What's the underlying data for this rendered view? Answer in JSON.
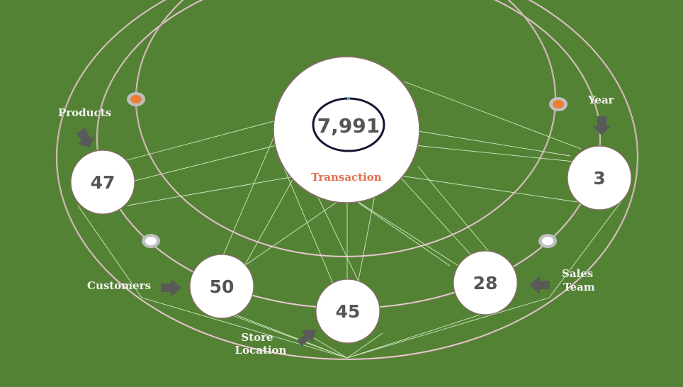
{
  "center": {
    "value": "7,991",
    "label": "Transaction"
  },
  "nodes": {
    "products": {
      "value": "47",
      "label": "Products"
    },
    "year": {
      "value": "3",
      "label": "Year"
    },
    "customers": {
      "value": "50",
      "label": "Customers"
    },
    "store_location": {
      "value": "45",
      "label_line1": "Store",
      "label_line2": "Location"
    },
    "sales_team": {
      "value": "28",
      "label_line1": "Sales",
      "label_line2": "Team"
    }
  },
  "colors": {
    "background": "#548235",
    "node_fill": "#FFFFFF",
    "node_text": "#555555",
    "center_label": "#E0704A",
    "arrow": "#5A5A5A",
    "connector": "#D9E8C8",
    "orbit": "#E8D0D0",
    "center_ring": "#1A1A2E",
    "accent_dot": "#ED7D31"
  }
}
